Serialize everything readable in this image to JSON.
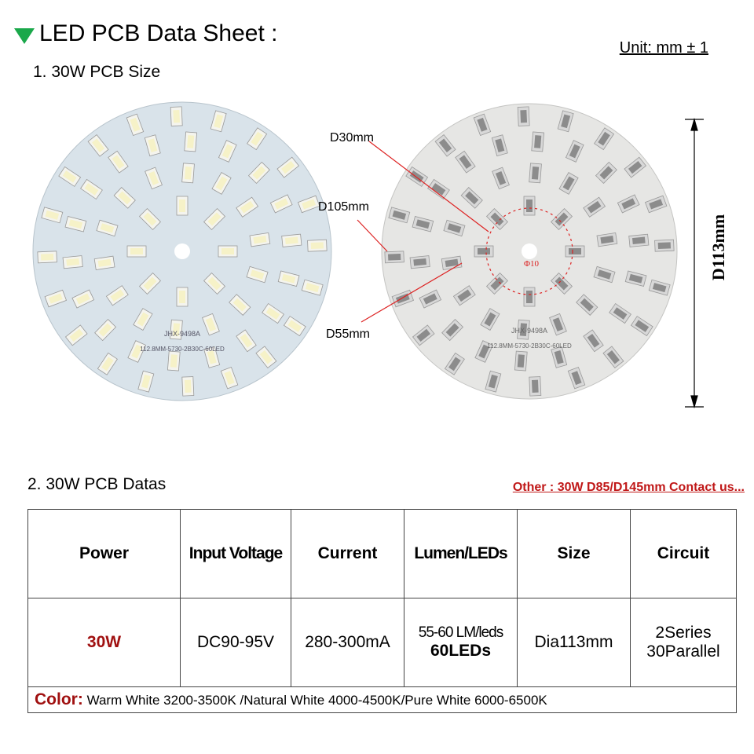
{
  "header": {
    "title": "LED PCB Data Sheet :",
    "unit": "Unit: mm ± 1"
  },
  "size_section": {
    "title": "1. 30W PCB Size",
    "pcb_marking": [
      "JHX-9498A",
      "112.8MM-5730-2B30C-60LED"
    ],
    "dimensions": [
      "D30mm",
      "D105mm",
      "D55mm",
      "Φ10",
      "D113mm"
    ]
  },
  "data_section": {
    "title": "2. 30W PCB Datas",
    "note": "Other : 30W D85/D145mm Contact us..."
  },
  "table": {
    "headers": [
      "Power",
      "Input Voltage",
      "Current",
      "Lumen/LEDs",
      "Size",
      "Circuit"
    ],
    "row": [
      "30W",
      "DC90-95V",
      "280-300mA",
      [
        "55-60 LM/leds",
        "60LEDs"
      ],
      "Dia113mm",
      [
        "2Series",
        "30Parallel"
      ]
    ],
    "color_label": "Color:",
    "color_text": "Warm White 3200-3500K /Natural White 4000-4500K/Pure White 6000-6500K"
  }
}
